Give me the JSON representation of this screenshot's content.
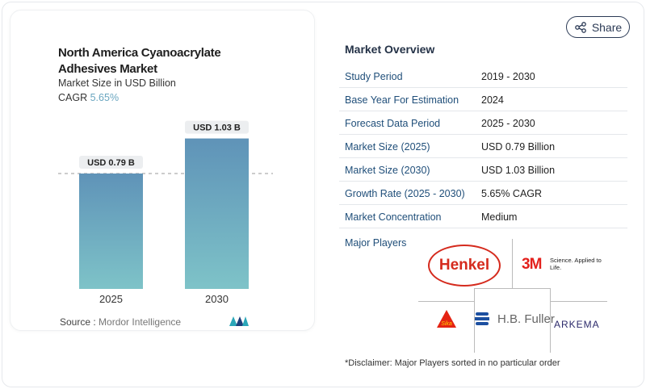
{
  "header": {
    "share_label": "Share"
  },
  "chart_card": {
    "title_line1": "North America Cyanoacrylate",
    "title_line2": "Adhesives Market",
    "subtitle": "Market Size in USD Billion",
    "cagr_label": "CAGR",
    "cagr_value": "5.65%",
    "source_label": "Source :",
    "source_value": "Mordor Intelligence"
  },
  "chart_data": {
    "type": "bar",
    "categories": [
      "2025",
      "2030"
    ],
    "values": [
      0.79,
      1.03
    ],
    "data_labels": [
      "USD 0.79 B",
      "USD 1.03 B"
    ],
    "ylabel": "Market Size in USD Billion",
    "ylim": [
      0,
      1.1
    ],
    "reference_line": 0.79,
    "colors": [
      "#5f93b8",
      "#7ec3c8"
    ]
  },
  "overview": {
    "title": "Market Overview",
    "rows": [
      {
        "key": "Study Period",
        "value": "2019 - 2030"
      },
      {
        "key": "Base Year For Estimation",
        "value": "2024"
      },
      {
        "key": "Forecast Data Period",
        "value": "2025 - 2030"
      },
      {
        "key": "Market Size (2025)",
        "value": "USD 0.79 Billion"
      },
      {
        "key": "Market Size (2030)",
        "value": "USD 1.03 Billion"
      },
      {
        "key": "Growth Rate (2025 - 2030)",
        "value": "5.65% CAGR"
      },
      {
        "key": "Market Concentration",
        "value": "Medium"
      }
    ],
    "major_players_label": "Major Players",
    "players": [
      "Henkel",
      "3M",
      "Sika",
      "H.B. Fuller",
      "ARKEMA"
    ],
    "players_3m_tagline": "Science. Applied to Life.",
    "disclaimer": "*Disclaimer: Major Players sorted in no particular order"
  }
}
